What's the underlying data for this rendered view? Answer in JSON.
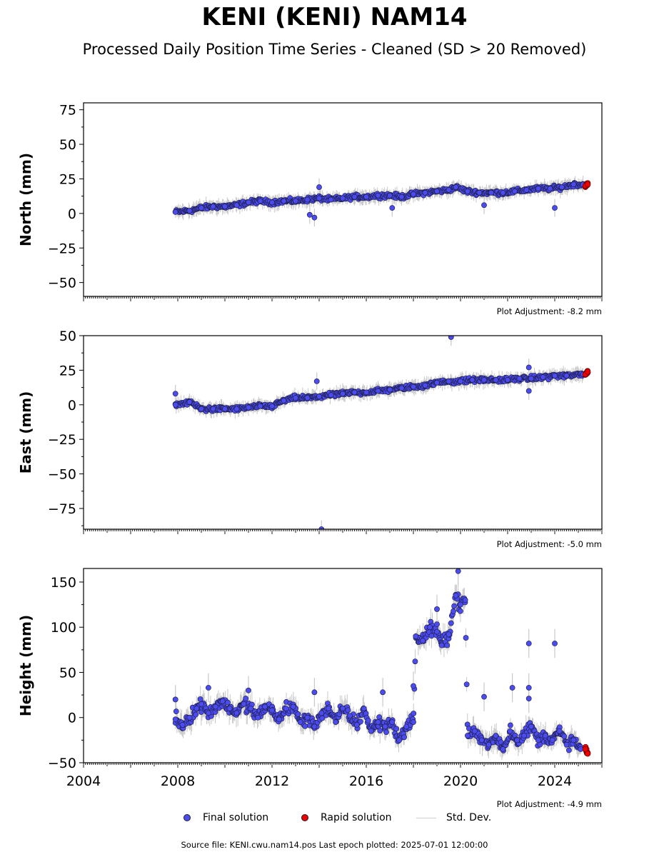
{
  "title": "KENI (KENI) NAM14",
  "subtitle": "Processed Daily Position Time Series - Cleaned (SD > 20 Removed)",
  "source_note": "Source file: KENI.cwu.nam14.pos  Last epoch plotted: 2025-07-01 12:00:00",
  "legend": {
    "final": "Final solution",
    "rapid": "Rapid solution",
    "stddev": "Std. Dev."
  },
  "colors": {
    "final": "#4b4bf0",
    "rapid": "#ee0000",
    "stddev": "#c8c8c8"
  },
  "chart_data": [
    {
      "type": "scatter",
      "ylabel": "North (mm)",
      "ylim": [
        -60,
        80
      ],
      "yticks": [
        -50,
        -25,
        0,
        25,
        50,
        75
      ],
      "xlim": [
        2004,
        2026
      ],
      "adjustment": "Plot Adjustment: -8.2 mm",
      "series": [
        {
          "name": "Final solution",
          "points": [
            [
              2007.9,
              1
            ],
            [
              2008.5,
              2
            ],
            [
              2009.0,
              4
            ],
            [
              2009.5,
              5
            ],
            [
              2010.0,
              5
            ],
            [
              2010.5,
              6
            ],
            [
              2011.0,
              8
            ],
            [
              2011.5,
              9
            ],
            [
              2012.0,
              8
            ],
            [
              2012.5,
              9
            ],
            [
              2013.0,
              9
            ],
            [
              2013.5,
              10
            ],
            [
              2014.0,
              11
            ],
            [
              2014.5,
              10
            ],
            [
              2015.0,
              11
            ],
            [
              2015.5,
              12
            ],
            [
              2016.0,
              12
            ],
            [
              2016.5,
              13
            ],
            [
              2017.0,
              13
            ],
            [
              2017.5,
              12
            ],
            [
              2018.0,
              14
            ],
            [
              2018.5,
              15
            ],
            [
              2019.0,
              16
            ],
            [
              2019.5,
              17
            ],
            [
              2019.8,
              19
            ],
            [
              2020.3,
              16
            ],
            [
              2020.8,
              15
            ],
            [
              2021.3,
              15
            ],
            [
              2021.8,
              15
            ],
            [
              2022.3,
              16
            ],
            [
              2022.8,
              17
            ],
            [
              2023.3,
              18
            ],
            [
              2023.8,
              18
            ],
            [
              2024.3,
              19
            ],
            [
              2024.8,
              21
            ],
            [
              2025.2,
              21
            ]
          ]
        },
        {
          "name": "Rapid solution",
          "points": [
            [
              2025.3,
              20
            ],
            [
              2025.4,
              21
            ]
          ]
        }
      ],
      "outliers": [
        [
          2013.6,
          -1
        ],
        [
          2013.8,
          -3
        ],
        [
          2014.0,
          19
        ],
        [
          2017.1,
          4
        ],
        [
          2021.0,
          6
        ],
        [
          2024.0,
          4
        ]
      ]
    },
    {
      "type": "scatter",
      "ylabel": "East (mm)",
      "ylim": [
        -90,
        50
      ],
      "yticks": [
        -75,
        -50,
        -25,
        0,
        25,
        50
      ],
      "xlim": [
        2004,
        2026
      ],
      "adjustment": "Plot Adjustment: -5.0 mm",
      "series": [
        {
          "name": "Final solution",
          "points": [
            [
              2007.9,
              0
            ],
            [
              2008.5,
              2
            ],
            [
              2009.0,
              -3
            ],
            [
              2009.5,
              -3
            ],
            [
              2010.0,
              -3
            ],
            [
              2010.5,
              -3
            ],
            [
              2011.0,
              -2
            ],
            [
              2011.5,
              -1
            ],
            [
              2012.0,
              -1
            ],
            [
              2012.5,
              3
            ],
            [
              2013.0,
              5
            ],
            [
              2013.5,
              5
            ],
            [
              2014.0,
              6
            ],
            [
              2014.5,
              7
            ],
            [
              2015.0,
              8
            ],
            [
              2015.5,
              9
            ],
            [
              2016.0,
              9
            ],
            [
              2016.5,
              10
            ],
            [
              2017.0,
              11
            ],
            [
              2017.5,
              12
            ],
            [
              2018.0,
              13
            ],
            [
              2018.5,
              14
            ],
            [
              2019.0,
              16
            ],
            [
              2019.5,
              17
            ],
            [
              2020.0,
              17
            ],
            [
              2020.5,
              18
            ],
            [
              2021.0,
              18
            ],
            [
              2021.5,
              18
            ],
            [
              2022.0,
              18
            ],
            [
              2022.5,
              19
            ],
            [
              2023.0,
              19
            ],
            [
              2023.5,
              20
            ],
            [
              2024.0,
              21
            ],
            [
              2024.5,
              21
            ],
            [
              2025.2,
              22
            ]
          ]
        },
        {
          "name": "Rapid solution",
          "points": [
            [
              2025.3,
              22
            ],
            [
              2025.4,
              24
            ]
          ]
        }
      ],
      "outliers": [
        [
          2007.9,
          8
        ],
        [
          2013.9,
          17
        ],
        [
          2014.1,
          -90
        ],
        [
          2019.6,
          49
        ],
        [
          2022.9,
          27
        ],
        [
          2022.9,
          10
        ]
      ]
    },
    {
      "type": "scatter",
      "ylabel": "Height (mm)",
      "ylim": [
        -50,
        165
      ],
      "yticks": [
        -50,
        0,
        50,
        100,
        150
      ],
      "xlim": [
        2004,
        2026
      ],
      "xticks": [
        2004,
        2008,
        2012,
        2016,
        2020,
        2024
      ],
      "adjustment": "Plot Adjustment: -4.9 mm",
      "series": [
        {
          "name": "Final solution",
          "points": [
            [
              2007.9,
              -2
            ],
            [
              2008.2,
              -8
            ],
            [
              2008.5,
              0
            ],
            [
              2008.8,
              10
            ],
            [
              2009.0,
              15
            ],
            [
              2009.3,
              5
            ],
            [
              2009.6,
              12
            ],
            [
              2009.9,
              18
            ],
            [
              2010.2,
              10
            ],
            [
              2010.5,
              5
            ],
            [
              2010.8,
              15
            ],
            [
              2011.1,
              10
            ],
            [
              2011.4,
              0
            ],
            [
              2011.7,
              12
            ],
            [
              2012.0,
              8
            ],
            [
              2012.3,
              -2
            ],
            [
              2012.6,
              10
            ],
            [
              2012.9,
              12
            ],
            [
              2013.2,
              -5
            ],
            [
              2013.5,
              0
            ],
            [
              2013.8,
              -10
            ],
            [
              2014.1,
              5
            ],
            [
              2014.4,
              10
            ],
            [
              2014.7,
              -5
            ],
            [
              2015.0,
              10
            ],
            [
              2015.3,
              2
            ],
            [
              2015.6,
              -8
            ],
            [
              2015.9,
              10
            ],
            [
              2016.2,
              -15
            ],
            [
              2016.5,
              -5
            ],
            [
              2016.8,
              -10
            ],
            [
              2017.1,
              -5
            ],
            [
              2017.4,
              -25
            ],
            [
              2017.7,
              -10
            ],
            [
              2018.0,
              -5
            ],
            [
              2018.1,
              90
            ],
            [
              2018.4,
              85
            ],
            [
              2018.7,
              100
            ],
            [
              2019.0,
              95
            ],
            [
              2019.2,
              80
            ],
            [
              2019.5,
              92
            ],
            [
              2019.8,
              135
            ],
            [
              2020.0,
              125
            ],
            [
              2020.2,
              130
            ],
            [
              2020.3,
              -20
            ],
            [
              2020.6,
              -15
            ],
            [
              2020.9,
              -25
            ],
            [
              2021.2,
              -30
            ],
            [
              2021.5,
              -20
            ],
            [
              2021.8,
              -35
            ],
            [
              2022.1,
              -15
            ],
            [
              2022.4,
              -25
            ],
            [
              2022.7,
              -20
            ],
            [
              2023.0,
              -10
            ],
            [
              2023.3,
              -25
            ],
            [
              2023.6,
              -20
            ],
            [
              2023.9,
              -25
            ],
            [
              2024.2,
              -15
            ],
            [
              2024.5,
              -30
            ],
            [
              2024.8,
              -25
            ],
            [
              2025.1,
              -35
            ]
          ]
        },
        {
          "name": "Rapid solution",
          "points": [
            [
              2025.3,
              -35
            ],
            [
              2025.4,
              -40
            ]
          ]
        }
      ],
      "outliers": [
        [
          2007.9,
          20
        ],
        [
          2009.3,
          33
        ],
        [
          2011.0,
          30
        ],
        [
          2013.8,
          28
        ],
        [
          2016.7,
          28
        ],
        [
          2018.0,
          35
        ],
        [
          2019.0,
          120
        ],
        [
          2019.9,
          162
        ],
        [
          2021.0,
          23
        ],
        [
          2022.2,
          33
        ],
        [
          2022.9,
          82
        ],
        [
          2022.9,
          33
        ],
        [
          2022.9,
          21
        ],
        [
          2024.0,
          82
        ]
      ]
    }
  ]
}
